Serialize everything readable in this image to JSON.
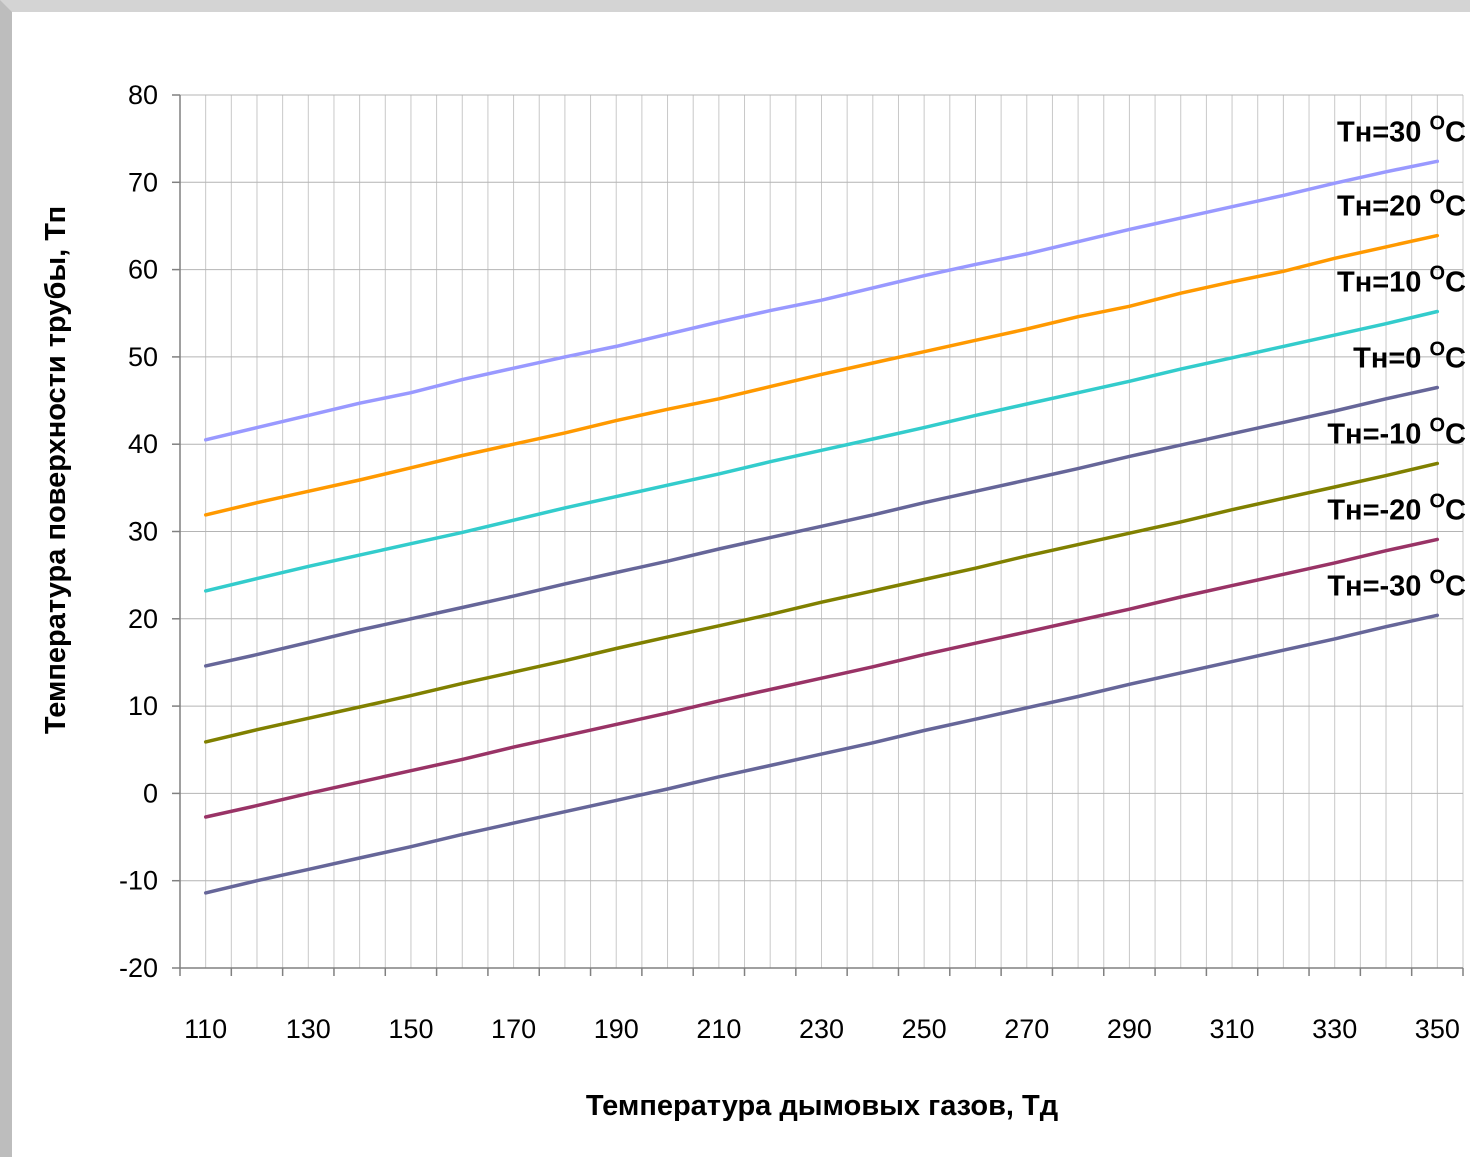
{
  "chart_data": {
    "type": "line",
    "title": "",
    "xlabel": "Температура дымовых газов, Тд",
    "ylabel": "Температура поверхности трубы, Тп",
    "x": [
      110,
      120,
      130,
      140,
      150,
      160,
      170,
      180,
      190,
      200,
      210,
      220,
      230,
      240,
      250,
      260,
      270,
      280,
      290,
      300,
      310,
      320,
      330,
      340,
      350
    ],
    "xlim": [
      105,
      355
    ],
    "ylim": [
      -20,
      80
    ],
    "x_ticks": [
      "110",
      "130",
      "150",
      "170",
      "190",
      "210",
      "230",
      "250",
      "270",
      "290",
      "310",
      "330",
      "350"
    ],
    "y_ticks": [
      "80",
      "70",
      "60",
      "50",
      "40",
      "30",
      "20",
      "10",
      "0",
      "-10",
      "-20"
    ],
    "grid": true,
    "legend": "inline-right",
    "series": [
      {
        "name": "Тн=30",
        "unit": "O",
        "unit_tail": "C",
        "color": "#9999ff",
        "values": [
          40.5,
          41.9,
          43.3,
          44.7,
          45.9,
          47.4,
          48.7,
          50.0,
          51.2,
          52.6,
          54.0,
          55.3,
          56.5,
          57.9,
          59.3,
          60.6,
          61.8,
          63.2,
          64.6,
          65.9,
          67.2,
          68.5,
          69.9,
          71.2,
          72.4
        ]
      },
      {
        "name": "Тн=20",
        "unit": "O",
        "unit_tail": "C",
        "color": "#ff9900",
        "values": [
          31.9,
          33.3,
          34.6,
          35.9,
          37.3,
          38.7,
          40.0,
          41.3,
          42.7,
          44.0,
          45.2,
          46.6,
          48.0,
          49.3,
          50.6,
          51.9,
          53.2,
          54.6,
          55.8,
          57.3,
          58.6,
          59.8,
          61.3,
          62.6,
          63.9
        ]
      },
      {
        "name": "Тн=10",
        "unit": "O",
        "unit_tail": "C",
        "color": "#33cccc",
        "values": [
          23.2,
          24.6,
          26.0,
          27.3,
          28.6,
          29.9,
          31.3,
          32.7,
          34.0,
          35.3,
          36.6,
          38.0,
          39.3,
          40.6,
          41.9,
          43.3,
          44.6,
          45.9,
          47.2,
          48.6,
          49.9,
          51.2,
          52.5,
          53.8,
          55.2
        ]
      },
      {
        "name": "Тн=0",
        "unit": "O",
        "unit_tail": "C",
        "color": "#666699",
        "values": [
          14.6,
          15.9,
          17.3,
          18.7,
          20.0,
          21.3,
          22.6,
          24.0,
          25.3,
          26.6,
          28.0,
          29.3,
          30.6,
          31.9,
          33.3,
          34.6,
          35.9,
          37.2,
          38.6,
          39.9,
          41.2,
          42.5,
          43.8,
          45.2,
          46.5
        ]
      },
      {
        "name": "Тн=-10",
        "unit": "O",
        "unit_tail": "C",
        "color": "#808000",
        "values": [
          5.9,
          7.3,
          8.6,
          9.9,
          11.2,
          12.6,
          13.9,
          15.2,
          16.6,
          17.9,
          19.2,
          20.5,
          21.9,
          23.2,
          24.5,
          25.8,
          27.2,
          28.5,
          29.8,
          31.1,
          32.5,
          33.8,
          35.1,
          36.4,
          37.8
        ]
      },
      {
        "name": "Тн=-20",
        "unit": "O",
        "unit_tail": "C",
        "color": "#993366",
        "values": [
          -2.7,
          -1.4,
          0.0,
          1.3,
          2.6,
          3.9,
          5.3,
          6.6,
          7.9,
          9.2,
          10.6,
          11.9,
          13.2,
          14.5,
          15.9,
          17.2,
          18.5,
          19.8,
          21.1,
          22.5,
          23.8,
          25.1,
          26.4,
          27.8,
          29.1
        ]
      },
      {
        "name": "Тн=-30",
        "unit": "O",
        "unit_tail": "C",
        "color": "#666699",
        "values": [
          -11.4,
          -10.0,
          -8.7,
          -7.4,
          -6.1,
          -4.7,
          -3.4,
          -2.1,
          -0.8,
          0.5,
          1.9,
          3.2,
          4.5,
          5.8,
          7.2,
          8.5,
          9.8,
          11.1,
          12.5,
          13.8,
          15.1,
          16.4,
          17.7,
          19.1,
          20.4
        ]
      }
    ]
  }
}
